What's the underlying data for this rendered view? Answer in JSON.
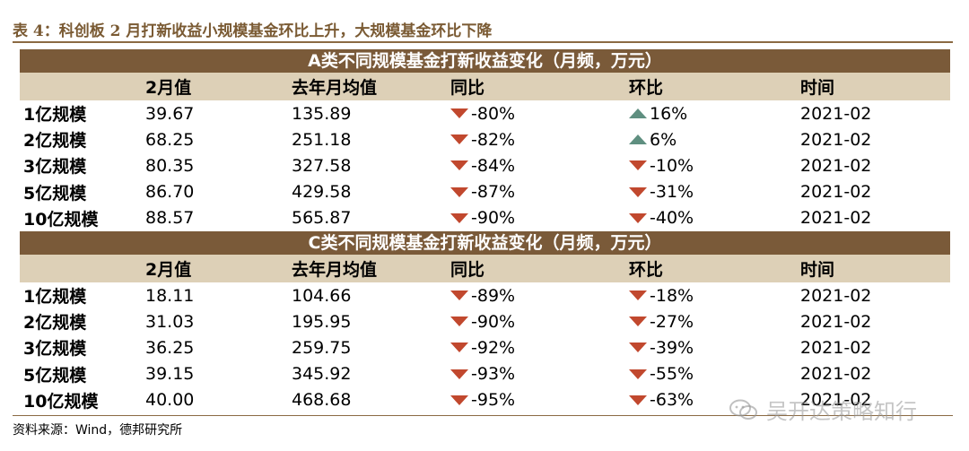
{
  "title": "表 4：科创板 2 月打新收益小规模基金环比上升，大规模基金环比下降",
  "columns": [
    "2月值",
    "去年月均值",
    "同比",
    "环比",
    "时间"
  ],
  "sections": [
    {
      "heading": "A类不同规模基金打新收益变化（月频，万元）",
      "rows": [
        {
          "label": "1亿规模",
          "feb": "39.67",
          "avg": "135.89",
          "yoy": "-80%",
          "yoy_dir": "down",
          "mom": "16%",
          "mom_dir": "up",
          "time": "2021-02"
        },
        {
          "label": "2亿规模",
          "feb": "68.25",
          "avg": "251.18",
          "yoy": "-82%",
          "yoy_dir": "down",
          "mom": "6%",
          "mom_dir": "up",
          "time": "2021-02"
        },
        {
          "label": "3亿规模",
          "feb": "80.35",
          "avg": "327.58",
          "yoy": "-84%",
          "yoy_dir": "down",
          "mom": "-10%",
          "mom_dir": "down",
          "time": "2021-02"
        },
        {
          "label": "5亿规模",
          "feb": "86.70",
          "avg": "429.58",
          "yoy": "-87%",
          "yoy_dir": "down",
          "mom": "-31%",
          "mom_dir": "down",
          "time": "2021-02"
        },
        {
          "label": "10亿规模",
          "feb": "88.57",
          "avg": "565.87",
          "yoy": "-90%",
          "yoy_dir": "down",
          "mom": "-40%",
          "mom_dir": "down",
          "time": "2021-02"
        }
      ]
    },
    {
      "heading": "C类不同规模基金打新收益变化（月频，万元）",
      "rows": [
        {
          "label": "1亿规模",
          "feb": "18.11",
          "avg": "104.66",
          "yoy": "-89%",
          "yoy_dir": "down",
          "mom": "-18%",
          "mom_dir": "down",
          "time": "2021-02"
        },
        {
          "label": "2亿规模",
          "feb": "31.03",
          "avg": "195.95",
          "yoy": "-90%",
          "yoy_dir": "down",
          "mom": "-27%",
          "mom_dir": "down",
          "time": "2021-02"
        },
        {
          "label": "3亿规模",
          "feb": "36.25",
          "avg": "259.75",
          "yoy": "-92%",
          "yoy_dir": "down",
          "mom": "-39%",
          "mom_dir": "down",
          "time": "2021-02"
        },
        {
          "label": "5亿规模",
          "feb": "39.15",
          "avg": "345.92",
          "yoy": "-93%",
          "yoy_dir": "down",
          "mom": "-55%",
          "mom_dir": "down",
          "time": "2021-02"
        },
        {
          "label": "10亿规模",
          "feb": "40.00",
          "avg": "468.68",
          "yoy": "-95%",
          "yoy_dir": "down",
          "mom": "-63%",
          "mom_dir": "down",
          "time": "2021-02"
        }
      ]
    }
  ],
  "source": "资料来源：Wind，德邦研究所",
  "watermark": "吴开达策略知行",
  "colors": {
    "header_band": "#7a5a39",
    "column_band": "#ddd0b7",
    "down": "#c1482e",
    "up": "#5f8f80"
  }
}
